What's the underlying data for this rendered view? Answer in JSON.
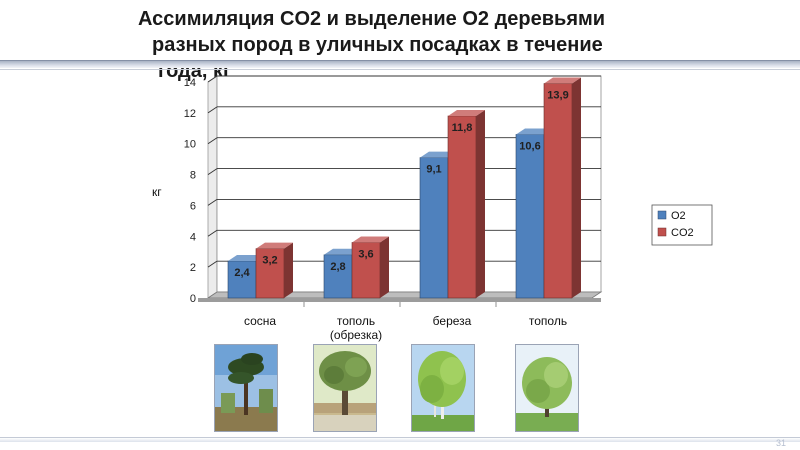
{
  "slide": {
    "title_line1": "Ассимиляция CO2 и выделение O2 деревьями",
    "title_line2": "разных пород в уличных посадках в течение",
    "title_line3": "года, кг",
    "page_number": "31"
  },
  "chart_data": {
    "type": "bar",
    "title": "",
    "xlabel": "",
    "ylabel": "кг",
    "ylim": [
      0,
      14
    ],
    "yticks": [
      "0",
      "2",
      "4",
      "6",
      "8",
      "10",
      "12",
      "14"
    ],
    "grid": true,
    "legend_position": "right",
    "categories": [
      "сосна",
      "тополь (обрезка)",
      "береза",
      "тополь"
    ],
    "category_lines": [
      [
        "сосна"
      ],
      [
        "тополь",
        "(обрезка)"
      ],
      [
        "береза"
      ],
      [
        "тополь"
      ]
    ],
    "series": [
      {
        "name": "O2",
        "values": [
          2.4,
          2.8,
          9.1,
          10.6
        ],
        "labels": [
          "2,4",
          "2,8",
          "9,1",
          "10,6"
        ],
        "color": "#4f81bd"
      },
      {
        "name": "CO2",
        "values": [
          3.2,
          3.6,
          11.8,
          13.9
        ],
        "labels": [
          "3,2",
          "3,6",
          "11,8",
          "13,9"
        ],
        "color": "#c0504d"
      }
    ]
  },
  "photos": [
    {
      "name": "pine-photo"
    },
    {
      "name": "pruned-poplar-photo"
    },
    {
      "name": "birch-photo"
    },
    {
      "name": "poplar-photo"
    }
  ]
}
